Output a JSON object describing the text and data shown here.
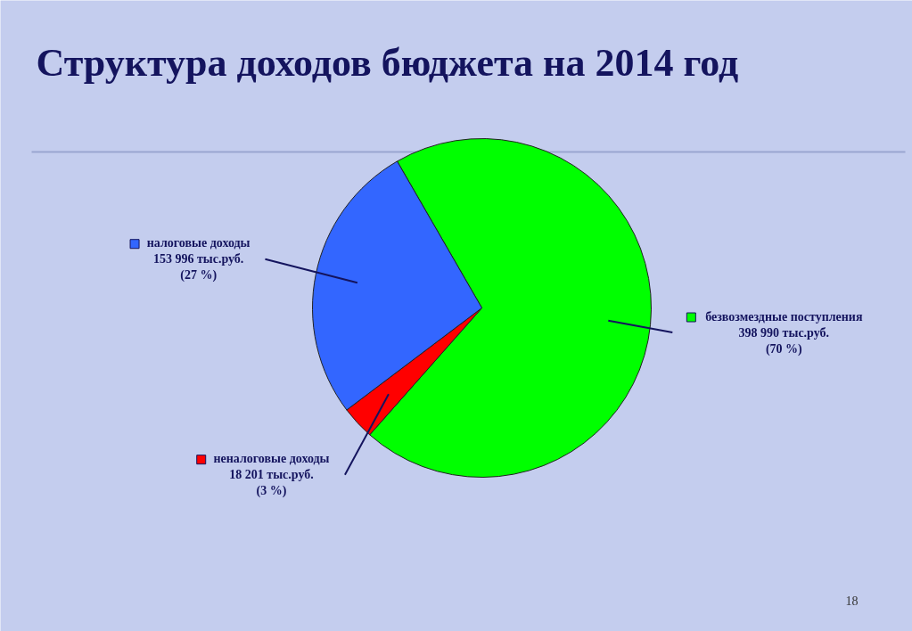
{
  "chart_data": {
    "type": "pie",
    "title": "Структура доходов бюджета на 2014 год",
    "categories": [
      "безвозмездные поступления",
      "неналоговые доходы",
      "налоговые доходы"
    ],
    "values": [
      398990,
      18201,
      153996
    ],
    "colors": [
      "#00ff00",
      "#ff0000",
      "#3366ff"
    ],
    "value_labels": [
      "398 990 тыс.руб.\n(70 %)",
      "18 201 тыс.руб.\n(3 %)",
      "153 996 тыс.руб.\n(27 %)"
    ],
    "legend": "right",
    "annotations": [
      "18"
    ]
  }
}
